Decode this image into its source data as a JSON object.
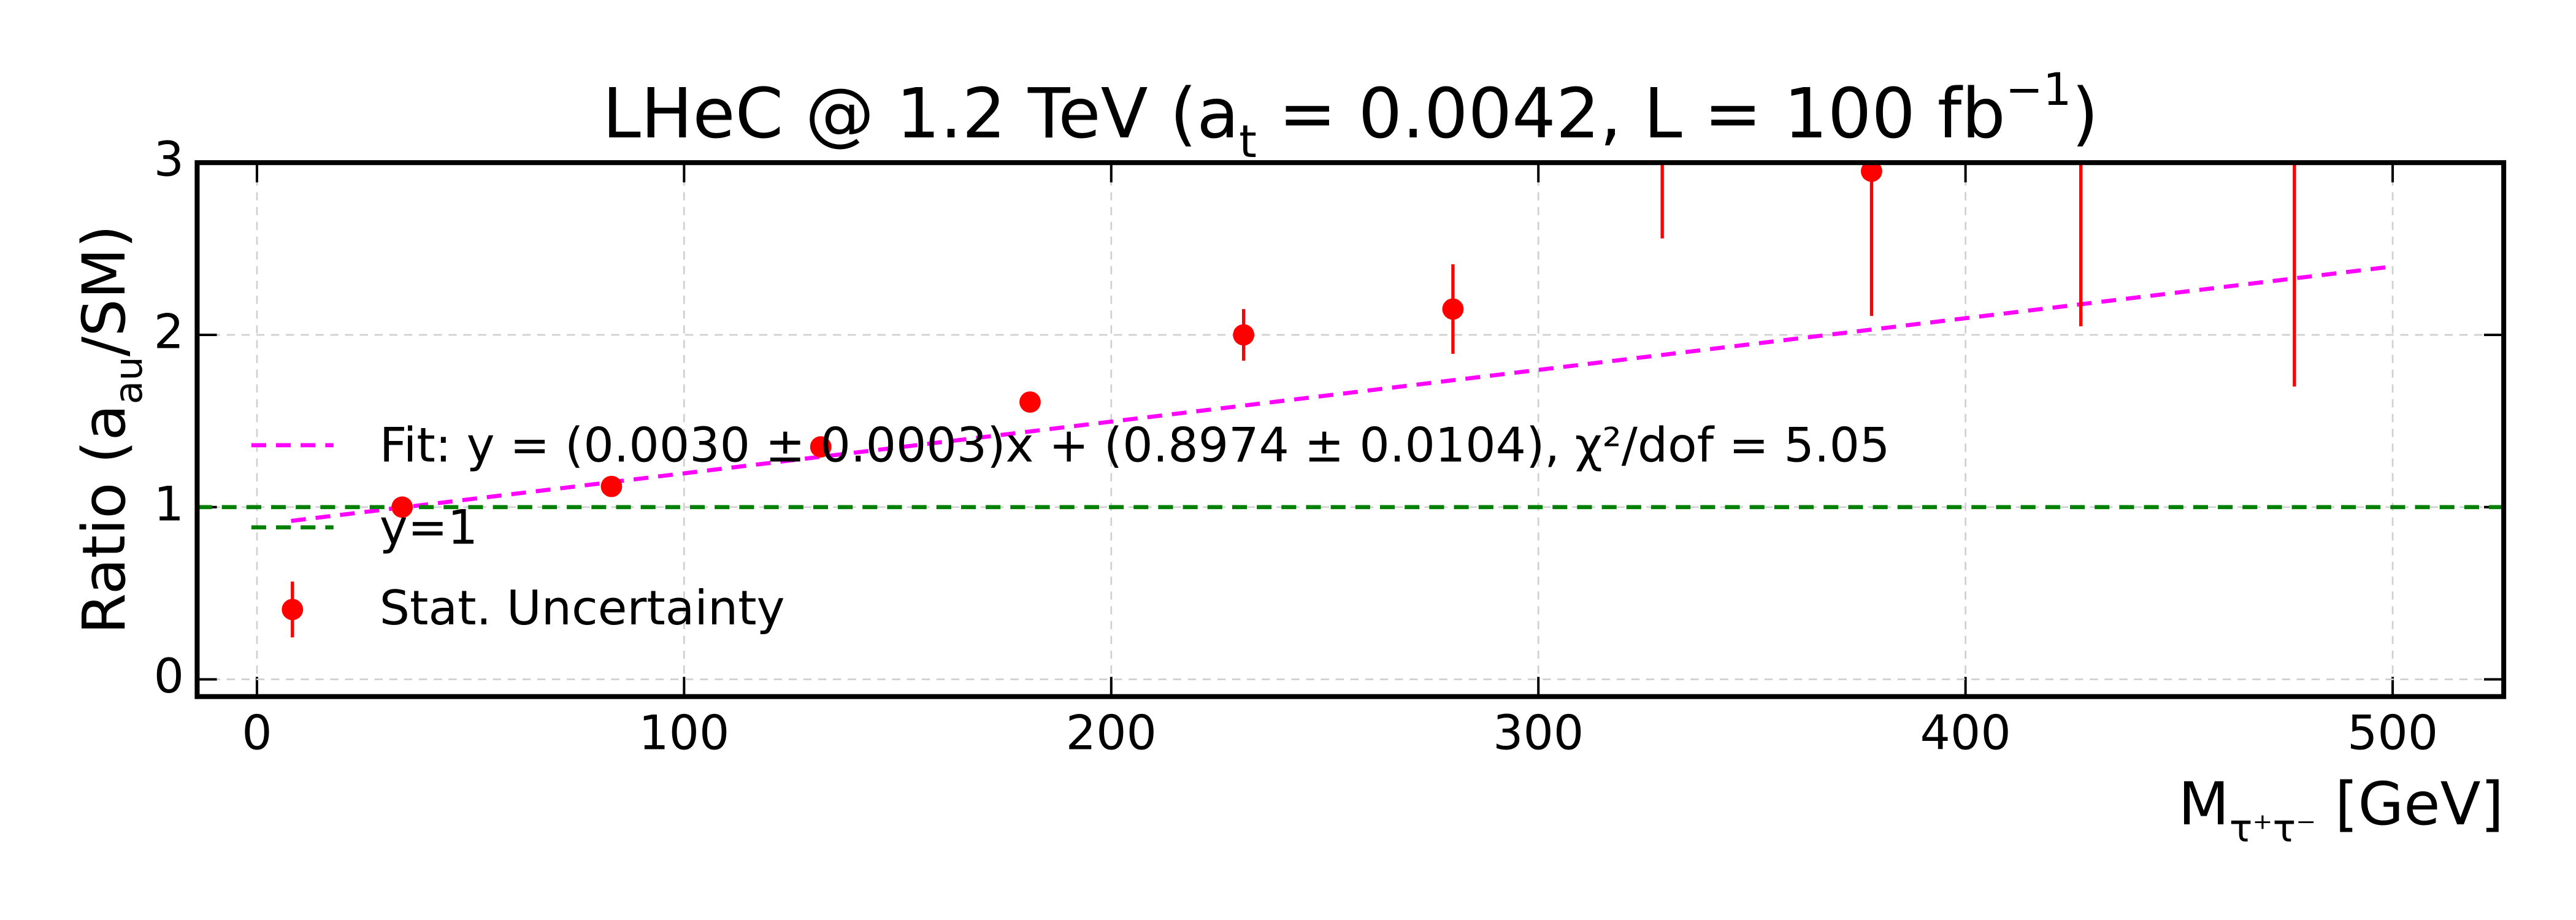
{
  "chart_data": {
    "type": "errorbar",
    "title": [
      "LHeC @ 1.2 TeV (a",
      "t",
      " = 0.0042, L = 100 fb",
      "−1",
      ")"
    ],
    "xlabel": [
      "M",
      "τ⁺τ⁻",
      "  [GeV]"
    ],
    "ylabel": [
      "Ratio (a",
      "au",
      "/SM)"
    ],
    "xlim": [
      -14,
      526
    ],
    "ylim": [
      -0.1,
      3
    ],
    "xticks": [
      0,
      100,
      200,
      300,
      400,
      500
    ],
    "yticks": [
      0,
      1,
      2,
      3
    ],
    "grid": true,
    "legend": "center left",
    "series": [
      {
        "name": "Stat. Uncertainty",
        "color": "#ff0000",
        "x": [
          34,
          83,
          132,
          181,
          231,
          280,
          329,
          378,
          427,
          477
        ],
        "values": [
          1.0,
          1.12,
          1.35,
          1.61,
          2.0,
          2.15,
          3.4,
          2.95,
          3.3,
          3.2
        ],
        "errors": [
          0.03,
          0.04,
          0.05,
          0.04,
          0.15,
          0.26,
          0.84,
          0.84,
          1.25,
          1.5
        ]
      }
    ],
    "lines": [
      {
        "name": "Fit: y = (0.0030 ± 0.0003)x + (0.8974 ± 0.0104),  χ²/dof = 5.05",
        "color": "#ff00ff",
        "x": [
          8,
          500
        ],
        "values": [
          0.92,
          2.397
        ]
      },
      {
        "name": "y=1",
        "color": "#008000",
        "x": [
          -14,
          526
        ],
        "values": [
          1,
          1
        ]
      }
    ]
  }
}
